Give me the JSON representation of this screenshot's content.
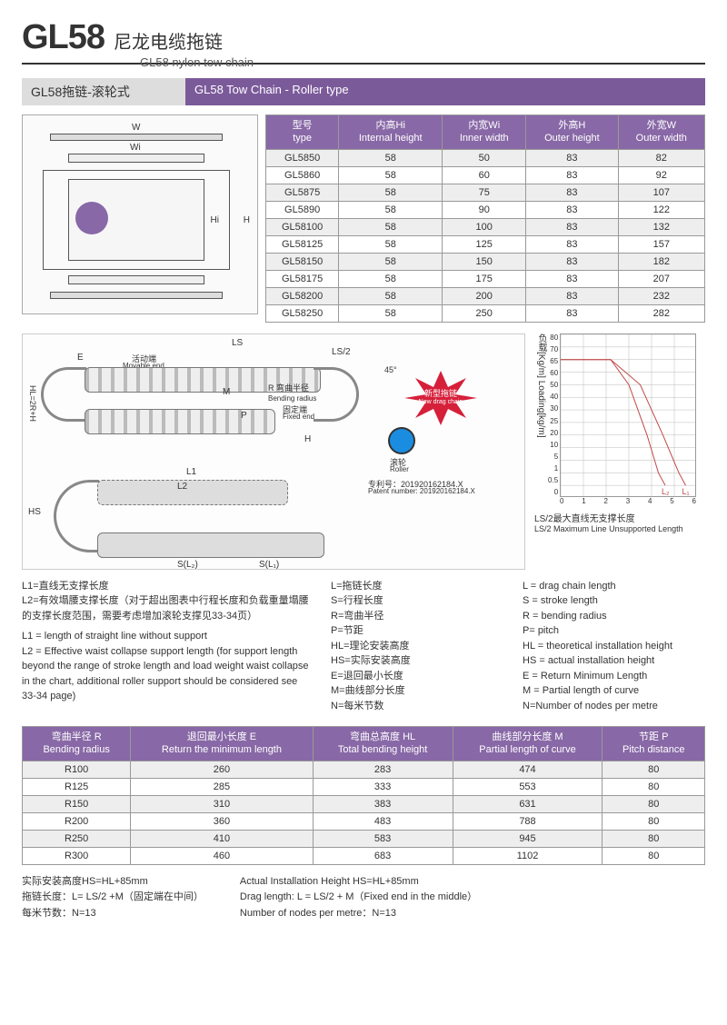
{
  "colors": {
    "header_bg": "#8868a6",
    "section_bar_en": "#7b5a9a",
    "row_alt": "#eeeeee",
    "starburst": "#d6203a",
    "roller": "#1a8de0",
    "curve1": "#c04848",
    "curve2": "#c04848"
  },
  "title": {
    "code": "GL58",
    "cn": "尼龙电缆拖链",
    "en": "GL58 nylon tow chain"
  },
  "section1": {
    "cn": "GL58拖链-滚轮式",
    "en": "GL58 Tow Chain - Roller type"
  },
  "diagram1_labels": {
    "W": "W",
    "Wi": "Wi",
    "Hi": "Hi",
    "H": "H"
  },
  "table1": {
    "headers": [
      {
        "cn": "型号",
        "en": "type"
      },
      {
        "cn": "内高Hi",
        "en": "Internal height"
      },
      {
        "cn": "内宽Wi",
        "en": "Inner width"
      },
      {
        "cn": "外高H",
        "en": "Outer height"
      },
      {
        "cn": "外宽W",
        "en": "Outer width"
      }
    ],
    "rows": [
      [
        "GL5850",
        "58",
        "50",
        "83",
        "82"
      ],
      [
        "GL5860",
        "58",
        "60",
        "83",
        "92"
      ],
      [
        "GL5875",
        "58",
        "75",
        "83",
        "107"
      ],
      [
        "GL5890",
        "58",
        "90",
        "83",
        "122"
      ],
      [
        "GL58100",
        "58",
        "100",
        "83",
        "132"
      ],
      [
        "GL58125",
        "58",
        "125",
        "83",
        "157"
      ],
      [
        "GL58150",
        "58",
        "150",
        "83",
        "182"
      ],
      [
        "GL58175",
        "58",
        "175",
        "83",
        "207"
      ],
      [
        "GL58200",
        "58",
        "200",
        "83",
        "232"
      ],
      [
        "GL58250",
        "58",
        "250",
        "83",
        "282"
      ]
    ]
  },
  "diagram2": {
    "LS": "LS",
    "LS2": "LS/2",
    "E": "E",
    "M": "M",
    "H": "H",
    "R": "R",
    "P": "P",
    "HL": "HL=2R+H",
    "HS": "HS",
    "L1": "L1",
    "L2": "L2",
    "SL1": "S(L₁)",
    "SL2": "S(L₂)",
    "movable_cn": "活动端",
    "movable_en": "Movable end",
    "fixed_cn": "固定端",
    "fixed_en": "Fixed end",
    "bending_cn": "弯曲半径",
    "bending_en": "Bending radius",
    "roller_cn": "滚轮",
    "roller_en": "Roller",
    "starburst_cn": "新型拖链",
    "starburst_en": "New drag chain",
    "patent_cn": "专利号：201920162184.X",
    "patent_en": "Patent number: 201920162184.X",
    "angle45": "45°"
  },
  "chart": {
    "ylabel_cn": "负载[Kg/m]",
    "ylabel_en": "Loading[kg/m]",
    "xlabel_cn": "LS/2最大直线无支撑长度",
    "xlabel_en": "LS/2 Maximum Line Unsupported Length",
    "ylim": [
      0,
      80
    ],
    "yticks": [
      0,
      0.5,
      1,
      5,
      10,
      20,
      25,
      30,
      40,
      50,
      60,
      65,
      70,
      80
    ],
    "displayed_yticks": [
      80,
      70,
      65,
      60,
      50,
      40,
      30,
      25,
      20,
      10,
      5,
      1,
      0.5,
      0
    ],
    "xlim": [
      0,
      6
    ],
    "xticks": [
      0,
      1,
      2,
      3,
      4,
      5,
      6
    ],
    "series": [
      {
        "name": "L1",
        "label": "L₁",
        "color": "#c04848",
        "points": [
          [
            0,
            65
          ],
          [
            2.2,
            65
          ],
          [
            3.5,
            50
          ],
          [
            4.5,
            20
          ],
          [
            5.2,
            1
          ],
          [
            5.5,
            0.5
          ]
        ]
      },
      {
        "name": "L2",
        "label": "L₂",
        "color": "#c04848",
        "points": [
          [
            0,
            65
          ],
          [
            2.2,
            65
          ],
          [
            3.0,
            50
          ],
          [
            3.8,
            20
          ],
          [
            4.3,
            1
          ],
          [
            4.6,
            0.5
          ]
        ]
      }
    ],
    "grid_color": "#bbbbbb",
    "background": "#ffffff",
    "line_width": 1
  },
  "notes_left": {
    "l1_cn": "L1=直线无支撑长度",
    "l2_cn": "L2=有效塌腰支撑长度（对于超出图表中行程长度和负载重量塌腰的支撑长度范围，需要考虑增加滚轮支撑见33-34页）",
    "l1_en": "L1 = length of straight line without support",
    "l2_en": "L2 = Effective waist collapse support length (for support length beyond the range of stroke length and load weight waist collapse in the chart, additional roller support should be considered see 33-34 page)"
  },
  "legend_terms": [
    {
      "cn": "L=拖链长度",
      "en": "L = drag chain length"
    },
    {
      "cn": "S=行程长度",
      "en": "S = stroke length"
    },
    {
      "cn": "R=弯曲半径",
      "en": "R = bending radius"
    },
    {
      "cn": "P=节距",
      "en": "P= pitch"
    },
    {
      "cn": "HL=理论安装高度",
      "en": "HL = theoretical installation height"
    },
    {
      "cn": "HS=实际安装高度",
      "en": "HS = actual installation height"
    },
    {
      "cn": "E=退回最小长度",
      "en": "E = Return Minimum Length"
    },
    {
      "cn": "M=曲线部分长度",
      "en": "M = Partial length of curve"
    },
    {
      "cn": "N=每米节数",
      "en": "N=Number of nodes per metre"
    }
  ],
  "table2": {
    "headers": [
      {
        "cn": "弯曲半径 R",
        "en": "Bending radius"
      },
      {
        "cn": "退回最小长度 E",
        "en": "Return the minimum length"
      },
      {
        "cn": "弯曲总高度 HL",
        "en": "Total bending height"
      },
      {
        "cn": "曲线部分长度 M",
        "en": "Partial length of curve"
      },
      {
        "cn": "节距 P",
        "en": "Pitch distance"
      }
    ],
    "rows": [
      [
        "R100",
        "260",
        "283",
        "474",
        "80"
      ],
      [
        "R125",
        "285",
        "333",
        "553",
        "80"
      ],
      [
        "R150",
        "310",
        "383",
        "631",
        "80"
      ],
      [
        "R200",
        "360",
        "483",
        "788",
        "80"
      ],
      [
        "R250",
        "410",
        "583",
        "945",
        "80"
      ],
      [
        "R300",
        "460",
        "683",
        "1102",
        "80"
      ]
    ]
  },
  "bottom_notes": {
    "col1": [
      "实际安装高度HS=HL+85mm",
      "拖链长度：L= LS/2 +M（固定端在中间）",
      "每米节数：N=13"
    ],
    "col2": [
      "Actual Installation Height HS=HL+85mm",
      "Drag length: L = LS/2 + M（Fixed end in the middle）",
      "Number of nodes per metre：N=13"
    ]
  }
}
